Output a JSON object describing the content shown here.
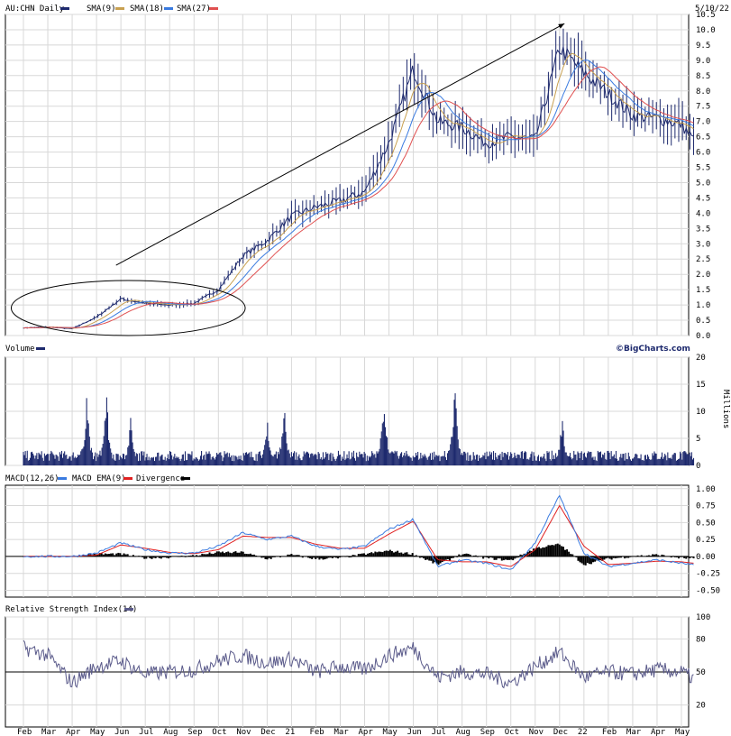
{
  "colors": {
    "price": "#1e2a6e",
    "sma9": "#c8a050",
    "sma18": "#3a7be0",
    "sma27": "#e05050",
    "volume": "#1e2a6e",
    "macd": "#3a7be0",
    "macd_ema": "#e02020",
    "divergence": "#000000",
    "rsi": "#5a5a8a",
    "grid": "#d8d8d8"
  },
  "header": {
    "symbol_label": "AU:CHN Daily",
    "sma9_label": "SMA(9)",
    "sma18_label": "SMA(18)",
    "sma27_label": "SMA(27)",
    "date": "5/10/22"
  },
  "brand": "©BigCharts.com",
  "x_labels": [
    "Feb",
    "Mar",
    "Apr",
    "May",
    "Jun",
    "Jul",
    "Aug",
    "Sep",
    "Oct",
    "Nov",
    "Dec",
    "21",
    "Feb",
    "Mar",
    "Apr",
    "May",
    "Jun",
    "Jul",
    "Aug",
    "Sep",
    "Oct",
    "Nov",
    "Dec",
    "22",
    "Feb",
    "Mar",
    "Apr",
    "May"
  ],
  "chart_data": [
    {
      "type": "line",
      "panel": "price",
      "ylim": [
        0,
        10.5
      ],
      "yticks": [
        "0.0",
        "0.5",
        "1.0",
        "1.5",
        "2.0",
        "2.5",
        "3.0",
        "3.5",
        "4.0",
        "4.5",
        "5.0",
        "5.5",
        "6.0",
        "6.5",
        "7.0",
        "7.5",
        "8.0",
        "8.5",
        "9.0",
        "9.5",
        "10.0",
        "10.5"
      ],
      "month_index": [
        0,
        1,
        2,
        3,
        4,
        5,
        6,
        7,
        8,
        9,
        10,
        11,
        12,
        13,
        14,
        15,
        16,
        17,
        18,
        19,
        20,
        21,
        22,
        23,
        24,
        25,
        26,
        27,
        27.5
      ],
      "close": [
        0.25,
        0.28,
        0.22,
        0.6,
        1.2,
        1.05,
        1.0,
        1.05,
        1.5,
        2.6,
        3.1,
        3.9,
        4.2,
        4.4,
        4.7,
        6.3,
        8.7,
        7.0,
        6.8,
        6.3,
        6.5,
        6.4,
        9.4,
        8.6,
        7.9,
        7.2,
        7.1,
        6.9,
        5.9
      ],
      "series": [
        {
          "name": "SMA(9)"
        },
        {
          "name": "SMA(18)"
        },
        {
          "name": "SMA(27)"
        }
      ],
      "annotations": {
        "trend_arrow": {
          "from": [
            3.8,
            2.3
          ],
          "to": [
            22.2,
            10.2
          ]
        },
        "ellipse": {
          "center": [
            4.3,
            0.9
          ],
          "months_half_width": 4.8,
          "value_half_height": 0.9
        }
      }
    },
    {
      "type": "bar",
      "panel": "volume",
      "ylabel": "Millions",
      "ylim": [
        0,
        20
      ],
      "yticks": [
        "0",
        "5",
        "10",
        "15",
        "20"
      ],
      "baseline": 1.6,
      "spikes": [
        {
          "month": 2.6,
          "value": 15.2
        },
        {
          "month": 3.4,
          "value": 15.5
        },
        {
          "month": 4.4,
          "value": 9.0
        },
        {
          "month": 10.0,
          "value": 10.5
        },
        {
          "month": 10.7,
          "value": 14.0
        },
        {
          "month": 14.8,
          "value": 16.5
        },
        {
          "month": 17.7,
          "value": 16.8
        },
        {
          "month": 22.1,
          "value": 10.5
        }
      ]
    },
    {
      "type": "line",
      "panel": "macd",
      "title_label": "MACD(12,26)",
      "ema_label": "MACD EMA(9)",
      "div_label": "Divergence",
      "ylim": [
        -0.6,
        1.05
      ],
      "yticks": [
        "1.00",
        "0.75",
        "0.50",
        "0.25",
        "0.00",
        "-0.25",
        "-0.50"
      ],
      "macd": [
        0.0,
        0.0,
        0.0,
        0.05,
        0.2,
        0.1,
        0.05,
        0.05,
        0.15,
        0.35,
        0.25,
        0.3,
        0.15,
        0.1,
        0.15,
        0.4,
        0.55,
        -0.15,
        -0.05,
        -0.1,
        -0.2,
        0.2,
        0.9,
        0.05,
        -0.15,
        -0.1,
        -0.05,
        -0.1,
        -0.15
      ],
      "ema": [
        0.0,
        0.0,
        0.0,
        0.02,
        0.17,
        0.12,
        0.06,
        0.04,
        0.1,
        0.3,
        0.28,
        0.28,
        0.18,
        0.12,
        0.12,
        0.33,
        0.52,
        -0.05,
        -0.08,
        -0.08,
        -0.15,
        0.1,
        0.75,
        0.15,
        -0.12,
        -0.1,
        -0.07,
        -0.08,
        -0.12
      ]
    },
    {
      "type": "line",
      "panel": "rsi",
      "title_label": "Relative Strength Index(14)",
      "ylim": [
        0,
        100
      ],
      "yticks": [
        "100",
        "80",
        "50",
        "20"
      ],
      "values": [
        72,
        65,
        40,
        55,
        60,
        48,
        50,
        52,
        60,
        65,
        58,
        62,
        50,
        55,
        52,
        65,
        72,
        45,
        50,
        48,
        40,
        55,
        68,
        45,
        50,
        48,
        52,
        50,
        38
      ]
    }
  ]
}
